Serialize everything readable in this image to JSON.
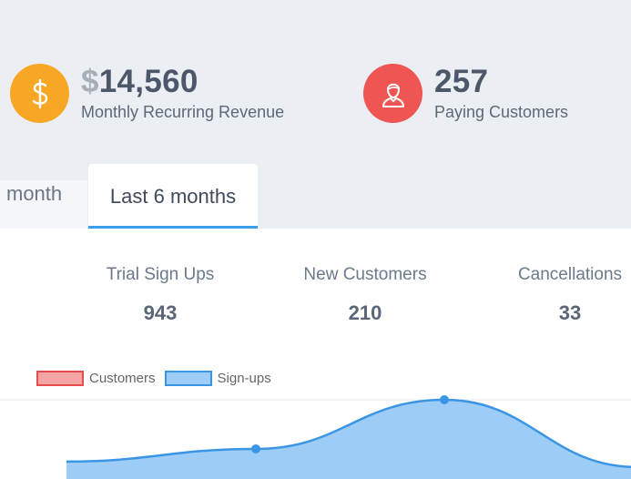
{
  "kpis": {
    "revenue": {
      "currency_symbol": "$",
      "value": "14,560",
      "label": "Monthly Recurring Revenue",
      "icon": "dollar-icon",
      "color": "#f8a725"
    },
    "customers": {
      "value": "257",
      "label": "Paying Customers",
      "icon": "user-icon",
      "color": "#ee5553"
    }
  },
  "tabs": [
    {
      "label": "month",
      "active": false
    },
    {
      "label": "Last 6 months",
      "active": true
    }
  ],
  "stats": [
    {
      "label": "Trial Sign Ups",
      "value": "943"
    },
    {
      "label": "New Customers",
      "value": "210"
    },
    {
      "label": "Cancellations",
      "value": "33"
    }
  ],
  "legend": [
    {
      "label": "Customers",
      "color": "#e74c4c"
    },
    {
      "label": "Sign-ups",
      "color": "#3a96e4"
    }
  ],
  "chart_data": {
    "type": "area",
    "series": [
      {
        "name": "Sign-ups",
        "values": [
          0.22,
          0.38,
          1.0,
          0.15
        ]
      },
      {
        "name": "Customers",
        "values": []
      }
    ],
    "grid": true,
    "legend_position": "top-left"
  }
}
